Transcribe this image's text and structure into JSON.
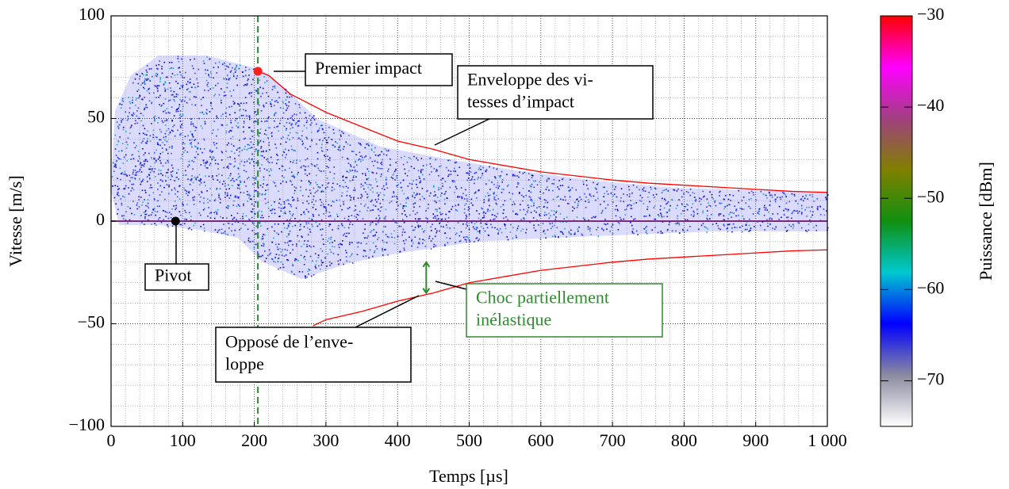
{
  "chart_data": {
    "type": "line",
    "x_label": "Temps [µs]",
    "y_label": "Vitesse [m/s]",
    "xlim": [
      0,
      1000
    ],
    "ylim": [
      -100,
      100
    ],
    "xticks": [
      0,
      100,
      200,
      300,
      400,
      500,
      600,
      700,
      800,
      900,
      {
        "value": 1000,
        "label": "1 000"
      }
    ],
    "yticks": [
      {
        "value": -100,
        "label": "−100"
      },
      {
        "value": -50,
        "label": "−50"
      },
      0,
      50,
      100
    ],
    "grid": true,
    "series": [
      {
        "color": "#ff0000",
        "x": [
          205,
          220,
          250,
          300,
          350,
          400,
          450,
          500,
          550,
          600,
          650,
          700,
          750,
          800,
          850,
          900,
          950,
          1000
        ],
        "values": [
          73,
          71,
          62,
          53,
          46,
          39,
          35,
          30,
          27,
          24,
          22,
          20,
          18.5,
          17.5,
          16.5,
          15.5,
          14.5,
          14
        ]
      },
      {
        "color": "#ff0000",
        "x": [
          282,
          300,
          350,
          400,
          450,
          500,
          550,
          600,
          650,
          700,
          750,
          800,
          850,
          900,
          950,
          1000
        ],
        "values": [
          -51,
          -48,
          -44,
          -39,
          -35,
          -30,
          -27,
          -24,
          -22,
          -20,
          -18.5,
          -17.5,
          -16.5,
          -15.5,
          -14.5,
          -14
        ]
      },
      {
        "color": "#7a2a7a",
        "x": [
          0,
          1000
        ],
        "values": [
          0,
          0
        ]
      }
    ],
    "vline": {
      "x": 205,
      "color": "#2e8b2e"
    },
    "points": [
      {
        "x": 205,
        "y": 73,
        "color": "#ff2020"
      },
      {
        "x": 90,
        "y": 0,
        "color": "#000000"
      }
    ],
    "arrow": {
      "x": 440,
      "y": [
        -35,
        -20
      ],
      "color": "#2e8b2e"
    },
    "annotations": [
      {
        "lines": [
          "Premier impact"
        ],
        "color": "#000000"
      },
      {
        "lines": [
          "Enveloppe des vi-",
          "tesses d’impact"
        ],
        "color": "#000000"
      },
      {
        "lines": [
          "Pivot"
        ],
        "color": "#000000"
      },
      {
        "lines": [
          "Choc partiellement",
          "inélastique"
        ],
        "color": "#2e8b2e"
      },
      {
        "lines": [
          "Opposé de l’enve-",
          "loppe"
        ],
        "color": "#000000"
      }
    ],
    "colorbar": {
      "label": "Puissance [dBm]",
      "lim": [
        -75,
        -30
      ],
      "ticks": [
        {
          "value": -30,
          "label": "−30"
        },
        {
          "value": -40,
          "label": "−40"
        },
        {
          "value": -50,
          "label": "−50"
        },
        {
          "value": -60,
          "label": "−60"
        },
        {
          "value": -70,
          "label": "−70"
        }
      ],
      "colors": [
        "#ffffff",
        "#8a8aa0",
        "#0000ff",
        "#00c8d0",
        "#109010",
        "#808000",
        "#a04080",
        "#ff00ff",
        "#ff0000"
      ]
    }
  }
}
